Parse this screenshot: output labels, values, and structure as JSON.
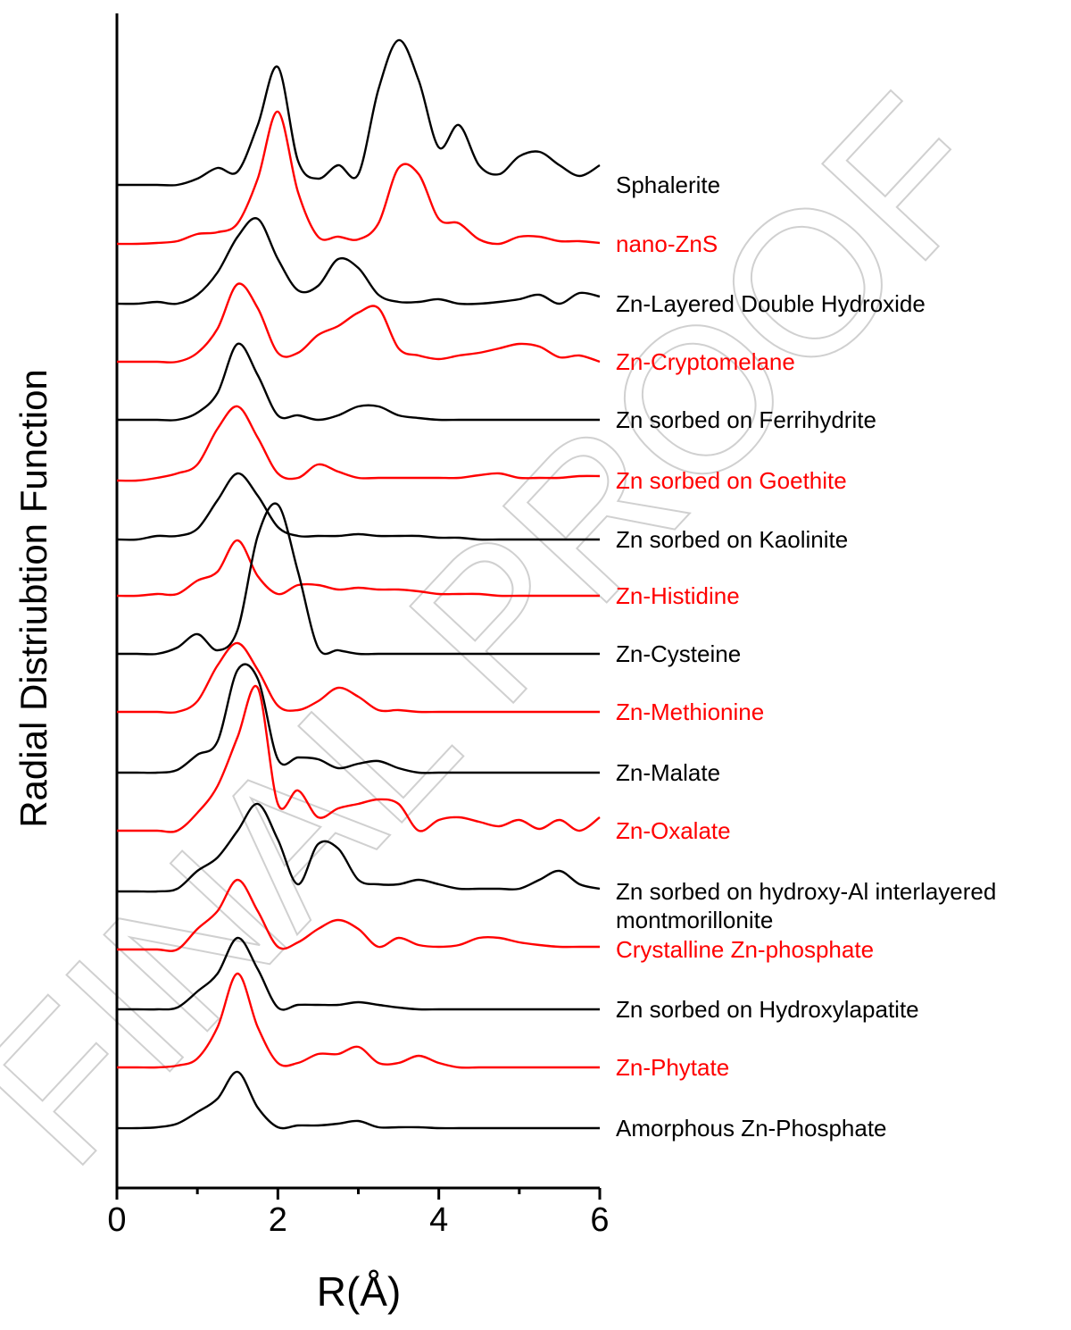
{
  "chart_data": {
    "type": "line",
    "x_label": "R(Å)",
    "y_label": "Radial Distriubtion Function",
    "watermark": "FINAL PROOF",
    "xlim": [
      0,
      6
    ],
    "xticks": [
      0,
      2,
      4,
      6
    ],
    "xminorticks": [
      1,
      3,
      5
    ],
    "ylim": [
      0,
      13.15
    ],
    "x": [
      0,
      0.25,
      0.5,
      0.75,
      1,
      1.25,
      1.5,
      1.75,
      2,
      2.25,
      2.5,
      2.75,
      3,
      3.25,
      3.5,
      3.75,
      4,
      4.25,
      4.5,
      4.75,
      5,
      5.25,
      5.5,
      5.75,
      6
    ],
    "series": [
      {
        "name": "Sphalerite",
        "color": "#000000",
        "values": [
          11.23,
          11.23,
          11.23,
          11.23,
          11.3,
          11.42,
          11.38,
          11.9,
          12.55,
          11.5,
          11.3,
          11.45,
          11.35,
          12.3,
          12.85,
          12.4,
          11.65,
          11.9,
          11.45,
          11.35,
          11.55,
          11.6,
          11.45,
          11.33,
          11.45
        ]
      },
      {
        "name": "nano-ZnS",
        "color": "#ff0000",
        "values": [
          10.57,
          10.57,
          10.58,
          10.6,
          10.68,
          10.7,
          10.8,
          11.3,
          12.05,
          11.15,
          10.65,
          10.65,
          10.62,
          10.8,
          11.42,
          11.35,
          10.85,
          10.8,
          10.62,
          10.57,
          10.65,
          10.65,
          10.6,
          10.6,
          10.58
        ]
      },
      {
        "name": "Zn-Layered Double Hydroxide",
        "color": "#000000",
        "values": [
          9.9,
          9.9,
          9.92,
          9.9,
          10.0,
          10.25,
          10.65,
          10.85,
          10.4,
          10.05,
          10.1,
          10.4,
          10.3,
          10.0,
          9.92,
          9.92,
          9.95,
          9.9,
          9.9,
          9.92,
          9.95,
          10.0,
          9.9,
          10.02,
          9.98
        ]
      },
      {
        "name": "Zn-Cryptomelane",
        "color": "#ff0000",
        "values": [
          9.25,
          9.25,
          9.25,
          9.25,
          9.35,
          9.62,
          10.12,
          9.85,
          9.35,
          9.35,
          9.55,
          9.65,
          9.8,
          9.85,
          9.4,
          9.32,
          9.28,
          9.32,
          9.35,
          9.4,
          9.45,
          9.42,
          9.3,
          9.32,
          9.25
        ]
      },
      {
        "name": "Zn sorbed on Ferrihydrite",
        "color": "#000000",
        "values": [
          8.6,
          8.6,
          8.6,
          8.6,
          8.68,
          8.9,
          9.45,
          9.1,
          8.65,
          8.65,
          8.6,
          8.65,
          8.75,
          8.75,
          8.65,
          8.62,
          8.6,
          8.6,
          8.6,
          8.6,
          8.6,
          8.6,
          8.6,
          8.6,
          8.6
        ]
      },
      {
        "name": "Zn sorbed on Goethite",
        "color": "#ff0000",
        "values": [
          7.92,
          7.92,
          7.95,
          8.0,
          8.1,
          8.5,
          8.75,
          8.4,
          8.0,
          7.95,
          8.1,
          8.02,
          7.95,
          7.95,
          7.95,
          7.95,
          7.95,
          7.95,
          7.98,
          8.0,
          7.95,
          7.95,
          7.95,
          7.97,
          7.97
        ]
      },
      {
        "name": "Zn sorbed on Kaolinite",
        "color": "#000000",
        "values": [
          7.26,
          7.26,
          7.3,
          7.3,
          7.38,
          7.7,
          8.0,
          7.75,
          7.4,
          7.3,
          7.3,
          7.3,
          7.32,
          7.3,
          7.3,
          7.3,
          7.28,
          7.28,
          7.26,
          7.26,
          7.26,
          7.26,
          7.26,
          7.26,
          7.26
        ]
      },
      {
        "name": "Zn-Histidine",
        "color": "#ff0000",
        "values": [
          6.63,
          6.63,
          6.65,
          6.65,
          6.8,
          6.9,
          7.25,
          6.85,
          6.65,
          6.75,
          6.75,
          6.7,
          6.72,
          6.7,
          6.7,
          6.68,
          6.65,
          6.65,
          6.65,
          6.63,
          6.63,
          6.63,
          6.63,
          6.63,
          6.63
        ]
      },
      {
        "name": "Zn-Cysteine",
        "color": "#000000",
        "values": [
          5.98,
          5.98,
          5.98,
          6.05,
          6.2,
          6.02,
          6.25,
          7.3,
          7.65,
          6.9,
          6.05,
          6.02,
          5.98,
          5.98,
          5.98,
          5.98,
          5.98,
          5.98,
          5.98,
          5.98,
          5.98,
          5.98,
          5.98,
          5.98,
          5.98
        ]
      },
      {
        "name": "Zn-Methionine",
        "color": "#ff0000",
        "values": [
          5.33,
          5.33,
          5.33,
          5.33,
          5.45,
          5.85,
          6.1,
          5.8,
          5.4,
          5.35,
          5.45,
          5.6,
          5.5,
          5.35,
          5.35,
          5.33,
          5.33,
          5.33,
          5.33,
          5.33,
          5.33,
          5.33,
          5.33,
          5.33,
          5.33
        ]
      },
      {
        "name": "Zn-Malate",
        "color": "#000000",
        "values": [
          4.65,
          4.65,
          4.65,
          4.68,
          4.85,
          5.0,
          5.8,
          5.7,
          4.8,
          4.82,
          4.8,
          4.7,
          4.75,
          4.78,
          4.7,
          4.65,
          4.65,
          4.65,
          4.65,
          4.65,
          4.65,
          4.65,
          4.65,
          4.65,
          4.65
        ]
      },
      {
        "name": "Zn-Oxalate",
        "color": "#ff0000",
        "values": [
          4.0,
          4.0,
          4.0,
          4.0,
          4.2,
          4.5,
          5.05,
          5.6,
          4.3,
          4.45,
          4.15,
          4.25,
          4.3,
          4.35,
          4.3,
          4.0,
          4.12,
          4.15,
          4.1,
          4.05,
          4.12,
          4.02,
          4.12,
          4.0,
          4.15
        ]
      },
      {
        "name": "Zn sorbed on hydroxy-Al interlayered montmorillonite",
        "color": "#000000",
        "values": [
          3.32,
          3.32,
          3.32,
          3.35,
          3.55,
          3.7,
          4.0,
          4.3,
          3.9,
          3.4,
          3.85,
          3.8,
          3.45,
          3.4,
          3.4,
          3.45,
          3.4,
          3.35,
          3.35,
          3.35,
          3.35,
          3.45,
          3.55,
          3.4,
          3.35
        ]
      },
      {
        "name": "Crystalline Zn-phosphate",
        "color": "#ff0000",
        "values": [
          2.67,
          2.67,
          2.67,
          2.67,
          2.9,
          3.1,
          3.45,
          3.1,
          2.7,
          2.75,
          2.9,
          3.0,
          2.9,
          2.7,
          2.8,
          2.72,
          2.7,
          2.72,
          2.8,
          2.8,
          2.75,
          2.72,
          2.7,
          2.7,
          2.7
        ]
      },
      {
        "name": "Zn sorbed on Hydroxylapatite",
        "color": "#000000",
        "values": [
          2.0,
          2.0,
          2.0,
          2.02,
          2.2,
          2.4,
          2.8,
          2.45,
          2.02,
          2.05,
          2.05,
          2.05,
          2.08,
          2.05,
          2.02,
          2.0,
          2.0,
          2.0,
          2.0,
          2.0,
          2.0,
          2.0,
          2.0,
          2.0,
          2.0
        ]
      },
      {
        "name": "Zn-Phytate",
        "color": "#ff0000",
        "values": [
          1.35,
          1.35,
          1.35,
          1.37,
          1.45,
          1.8,
          2.4,
          1.8,
          1.4,
          1.4,
          1.5,
          1.5,
          1.58,
          1.4,
          1.4,
          1.48,
          1.4,
          1.35,
          1.35,
          1.35,
          1.35,
          1.35,
          1.35,
          1.35,
          1.35
        ]
      },
      {
        "name": "Amorphous Zn-Phosphate",
        "color": "#000000",
        "values": [
          0.67,
          0.67,
          0.68,
          0.72,
          0.85,
          1.0,
          1.3,
          0.9,
          0.68,
          0.7,
          0.7,
          0.72,
          0.75,
          0.68,
          0.68,
          0.68,
          0.67,
          0.67,
          0.67,
          0.67,
          0.67,
          0.67,
          0.67,
          0.67,
          0.67
        ]
      }
    ]
  }
}
